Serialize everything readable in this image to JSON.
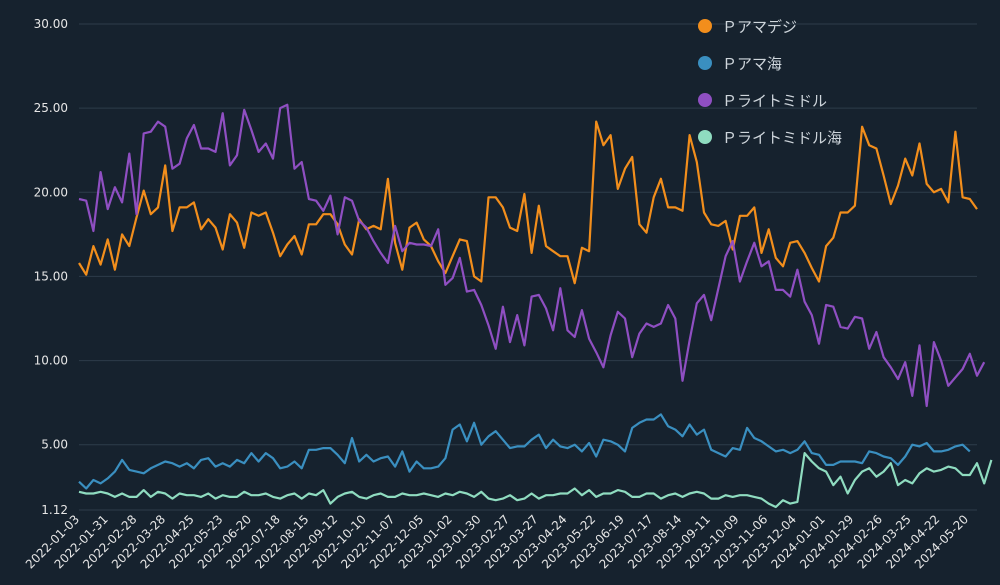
{
  "chart_data": {
    "type": "line",
    "title": "",
    "xlabel": "",
    "ylabel": "",
    "ylim": [
      1.12,
      30.0
    ],
    "y_ticks": [
      "1.12",
      "5.00",
      "10.00",
      "15.00",
      "20.00",
      "25.00",
      "30.00"
    ],
    "y_tick_values": [
      1.12,
      5,
      10,
      15,
      20,
      25,
      30
    ],
    "x_ticks": [
      "2022-01-03",
      "2022-01-31",
      "2022-02-28",
      "2022-03-28",
      "2022-04-25",
      "2022-05-23",
      "2022-06-20",
      "2022-07-18",
      "2022-08-15",
      "2022-09-12",
      "2022-10-10",
      "2022-11-07",
      "2022-12-05",
      "2023-01-02",
      "2023-01-30",
      "2023-02-27",
      "2023-03-27",
      "2023-04-24",
      "2023-05-22",
      "2023-06-19",
      "2023-07-17",
      "2023-08-14",
      "2023-09-11",
      "2023-10-09",
      "2023-11-06",
      "2023-12-04",
      "2024-01-01",
      "2024-01-29",
      "2024-02-26",
      "2024-03-25",
      "2024-04-22",
      "2024-05-20"
    ],
    "grid": true,
    "legend_position": "top-right",
    "series": [
      {
        "name": "Ｐアマデジ",
        "color": "#f28e1c",
        "values": [
          15.8,
          15.1,
          16.8,
          15.7,
          17.2,
          15.4,
          17.5,
          16.8,
          18.5,
          20.1,
          18.7,
          19.1,
          21.6,
          17.7,
          19.1,
          19.1,
          19.4,
          17.8,
          18.4,
          17.9,
          16.6,
          18.7,
          18.2,
          16.7,
          18.8,
          18.6,
          18.8,
          17.6,
          16.2,
          16.9,
          17.4,
          16.3,
          18.1,
          18.1,
          18.7,
          18.7,
          18.1,
          16.9,
          16.3,
          18.4,
          17.8,
          18.0,
          17.8,
          20.8,
          17.0,
          15.4,
          17.9,
          18.2,
          17.2,
          16.8,
          15.9,
          15.2,
          16.2,
          17.2,
          17.1,
          15.0,
          14.7,
          19.7,
          19.7,
          19.1,
          17.9,
          17.7,
          19.9,
          16.4,
          19.2,
          16.8,
          16.5,
          16.2,
          16.2,
          14.6,
          16.7,
          16.5,
          24.2,
          22.8,
          23.4,
          20.2,
          21.4,
          22.1,
          18.1,
          17.6,
          19.7,
          20.8,
          19.1,
          19.1,
          18.9,
          23.4,
          21.8,
          18.8,
          18.1,
          18.0,
          18.3,
          16.6,
          18.6,
          18.6,
          19.1,
          16.4,
          17.8,
          16.1,
          15.6,
          17.0,
          17.1,
          16.4,
          15.5,
          14.7,
          16.8,
          17.3,
          18.8,
          18.8,
          19.2,
          23.9,
          22.8,
          22.6,
          21.0,
          19.3,
          20.4,
          22.0,
          21.0,
          22.9,
          20.5,
          20.0,
          20.2,
          19.4,
          23.6,
          19.7,
          19.6,
          19.0
        ]
      },
      {
        "name": "Ｐアマ海",
        "color": "#3a8fc0",
        "values": [
          2.8,
          2.4,
          2.9,
          2.7,
          3.0,
          3.4,
          4.1,
          3.5,
          3.4,
          3.3,
          3.6,
          3.8,
          4.0,
          3.9,
          3.7,
          3.9,
          3.6,
          4.1,
          4.2,
          3.7,
          3.9,
          3.7,
          4.1,
          3.9,
          4.5,
          4.0,
          4.5,
          4.2,
          3.6,
          3.7,
          4.0,
          3.6,
          4.7,
          4.7,
          4.8,
          4.8,
          4.4,
          3.9,
          5.4,
          4.0,
          4.4,
          4.0,
          4.2,
          4.3,
          3.7,
          4.6,
          3.4,
          4.0,
          3.6,
          3.6,
          3.7,
          4.2,
          5.9,
          6.2,
          5.2,
          6.3,
          5.0,
          5.5,
          5.8,
          5.3,
          4.8,
          4.9,
          4.9,
          5.3,
          5.6,
          4.8,
          5.3,
          4.9,
          4.8,
          5.0,
          4.6,
          5.1,
          4.3,
          5.3,
          5.2,
          5.0,
          4.6,
          6.0,
          6.3,
          6.5,
          6.5,
          6.8,
          6.1,
          5.9,
          5.5,
          6.2,
          5.6,
          5.9,
          4.7,
          4.5,
          4.3,
          4.8,
          4.7,
          6.0,
          5.4,
          5.2,
          4.9,
          4.6,
          4.7,
          4.5,
          4.7,
          5.2,
          4.5,
          4.4,
          3.8,
          3.8,
          4.0,
          4.0,
          4.0,
          3.9,
          4.6,
          4.5,
          4.3,
          4.2,
          3.8,
          4.3,
          5.0,
          4.9,
          5.1,
          4.6,
          4.6,
          4.7,
          4.9,
          5.0,
          4.6
        ]
      },
      {
        "name": "Ｐライトミドル",
        "color": "#8f4fc2",
        "values": [
          19.6,
          19.5,
          17.7,
          21.2,
          19.0,
          20.3,
          19.4,
          22.3,
          18.7,
          23.5,
          23.6,
          24.2,
          23.9,
          21.4,
          21.7,
          23.2,
          24.0,
          22.6,
          22.6,
          22.4,
          24.7,
          21.6,
          22.2,
          24.9,
          23.7,
          22.4,
          22.9,
          22.0,
          25.0,
          25.2,
          21.4,
          21.8,
          19.6,
          19.5,
          18.9,
          19.8,
          17.5,
          19.7,
          19.5,
          18.3,
          17.9,
          17.1,
          16.4,
          15.8,
          18.0,
          16.5,
          17.0,
          16.9,
          16.9,
          16.8,
          17.8,
          14.5,
          14.9,
          16.1,
          14.1,
          14.2,
          13.3,
          12.1,
          10.7,
          13.2,
          11.1,
          12.7,
          10.9,
          13.8,
          13.9,
          13.1,
          11.8,
          14.3,
          11.8,
          11.4,
          13.0,
          11.3,
          10.5,
          9.6,
          11.5,
          12.9,
          12.5,
          10.2,
          11.6,
          12.2,
          12.0,
          12.2,
          13.3,
          12.5,
          8.8,
          11.2,
          13.4,
          13.9,
          12.4,
          14.3,
          16.2,
          17.1,
          14.7,
          15.9,
          17.0,
          15.6,
          15.9,
          14.2,
          14.2,
          13.8,
          15.4,
          13.5,
          12.7,
          11.0,
          13.3,
          13.2,
          12.0,
          11.9,
          12.6,
          12.5,
          10.7,
          11.7,
          10.2,
          9.6,
          8.9,
          9.9,
          7.9,
          10.9,
          7.3,
          11.1,
          10.0,
          8.5,
          9.0,
          9.5,
          10.4,
          9.1,
          9.9
        ]
      },
      {
        "name": "Ｐライトミドル海",
        "color": "#8fdcc0",
        "values": [
          2.2,
          2.1,
          2.1,
          2.2,
          2.1,
          1.9,
          2.1,
          1.9,
          1.9,
          2.3,
          1.9,
          2.2,
          2.1,
          1.8,
          2.1,
          2.0,
          2.0,
          1.9,
          2.1,
          1.8,
          2.0,
          1.9,
          1.9,
          2.2,
          2.0,
          2.0,
          2.1,
          1.9,
          1.8,
          2.0,
          2.1,
          1.8,
          2.1,
          2.0,
          2.3,
          1.5,
          1.9,
          2.1,
          2.2,
          1.9,
          1.8,
          2.0,
          2.1,
          1.9,
          1.9,
          2.1,
          2.0,
          2.0,
          2.1,
          2.0,
          1.9,
          2.1,
          2.0,
          2.2,
          2.1,
          1.9,
          2.2,
          1.8,
          1.7,
          1.8,
          2.0,
          1.7,
          1.8,
          2.1,
          1.8,
          2.0,
          2.0,
          2.1,
          2.1,
          2.4,
          2.0,
          2.3,
          1.9,
          2.1,
          2.1,
          2.3,
          2.2,
          1.9,
          1.9,
          2.1,
          2.1,
          1.8,
          2.0,
          2.1,
          1.9,
          2.1,
          2.2,
          2.1,
          1.8,
          1.8,
          2.0,
          1.9,
          2.0,
          2.0,
          1.9,
          1.8,
          1.5,
          1.3,
          1.7,
          1.5,
          1.6,
          4.5,
          4.0,
          3.6,
          3.4,
          2.6,
          3.1,
          2.1,
          2.9,
          3.4,
          3.6,
          3.1,
          3.4,
          3.9,
          2.6,
          2.9,
          2.7,
          3.3,
          3.6,
          3.4,
          3.5,
          3.7,
          3.6,
          3.2,
          3.2,
          3.9,
          2.7,
          4.1
        ]
      }
    ]
  }
}
